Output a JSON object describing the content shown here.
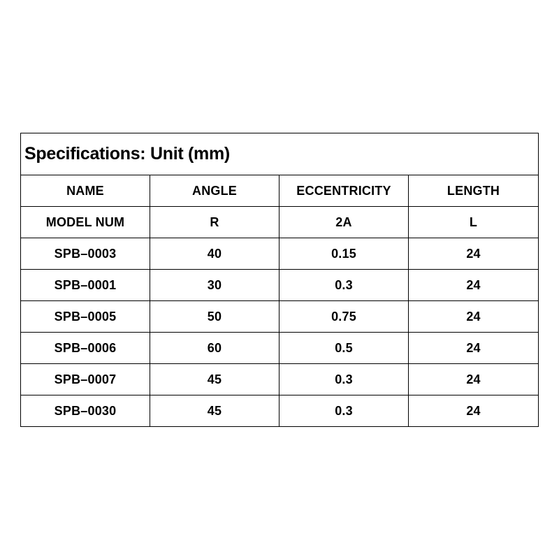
{
  "title": "Specifications: Unit (mm)",
  "header_row": [
    "NAME",
    "ANGLE",
    "ECCENTRICITY",
    "LENGTH"
  ],
  "symbol_row": [
    "MODEL NUM",
    "R",
    "2A",
    "L"
  ],
  "rows": [
    [
      "SPB–0003",
      "40",
      "0.15",
      "24"
    ],
    [
      "SPB–0001",
      "30",
      "0.3",
      "24"
    ],
    [
      "SPB–0005",
      "50",
      "0.75",
      "24"
    ],
    [
      "SPB–0006",
      "60",
      "0.5",
      "24"
    ],
    [
      "SPB–0007",
      "45",
      "0.3",
      "24"
    ],
    [
      "SPB–0030",
      "45",
      "0.3",
      "24"
    ]
  ]
}
